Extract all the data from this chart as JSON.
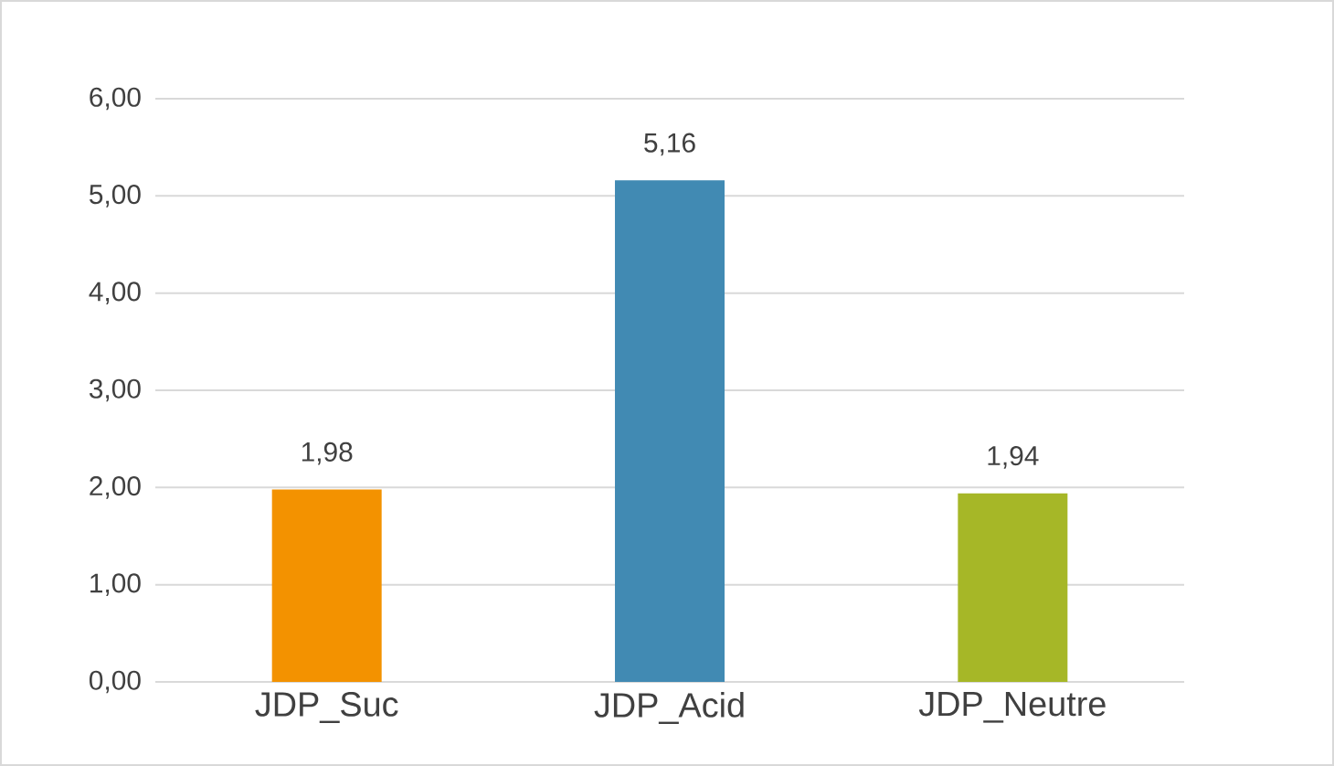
{
  "chart_data": {
    "type": "bar",
    "categories": [
      "JDP_Suc",
      "JDP_Acid",
      "JDP_Neutre"
    ],
    "values": [
      1.98,
      5.16,
      1.94
    ],
    "colors": [
      "#f39200",
      "#418ab3",
      "#a6b727"
    ],
    "value_labels": [
      "1,98",
      "5,16",
      "1,94"
    ],
    "ylim": [
      0,
      6
    ],
    "yticks": [
      {
        "value": 0,
        "label": "0,00"
      },
      {
        "value": 1,
        "label": "1,00"
      },
      {
        "value": 2,
        "label": "2,00"
      },
      {
        "value": 3,
        "label": "3,00"
      },
      {
        "value": 4,
        "label": "4,00"
      },
      {
        "value": 5,
        "label": "5,00"
      },
      {
        "value": 6,
        "label": "6,00"
      }
    ],
    "grid": "y"
  }
}
